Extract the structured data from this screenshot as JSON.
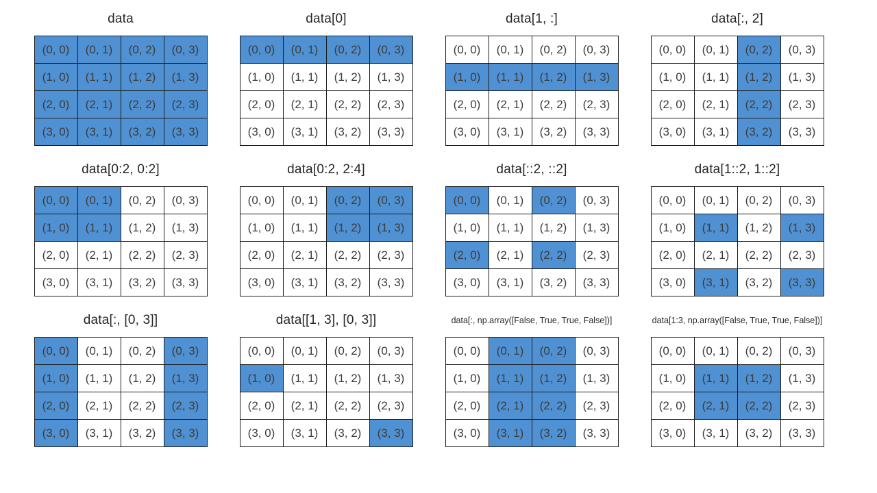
{
  "diagram": {
    "description": "NumPy 2D array indexing illustration: 12 panels showing which cells of a 4x4 array are selected by each indexing expression",
    "colors": {
      "highlight": "#4f91d2",
      "border": "#1c1c1c",
      "cell_text": "#3c3c3c",
      "title_text": "#262626",
      "background": "#ffffff"
    },
    "cells": [
      [
        "(0, 0)",
        "(0, 1)",
        "(0, 2)",
        "(0, 3)"
      ],
      [
        "(1, 0)",
        "(1, 1)",
        "(1, 2)",
        "(1, 3)"
      ],
      [
        "(2, 0)",
        "(2, 1)",
        "(2, 2)",
        "(2, 3)"
      ],
      [
        "(3, 0)",
        "(3, 1)",
        "(3, 2)",
        "(3, 3)"
      ]
    ],
    "panels": [
      {
        "title": "data",
        "title_size": "normal",
        "mask": [
          "1111",
          "1111",
          "1111",
          "1111"
        ]
      },
      {
        "title": "data[0]",
        "title_size": "normal",
        "mask": [
          "1111",
          "0000",
          "0000",
          "0000"
        ]
      },
      {
        "title": "data[1, :]",
        "title_size": "normal",
        "mask": [
          "0000",
          "1111",
          "0000",
          "0000"
        ]
      },
      {
        "title": "data[:, 2]",
        "title_size": "normal",
        "mask": [
          "0010",
          "0010",
          "0010",
          "0010"
        ]
      },
      {
        "title": "data[0:2, 0:2]",
        "title_size": "normal",
        "mask": [
          "1100",
          "1100",
          "0000",
          "0000"
        ]
      },
      {
        "title": "data[0:2, 2:4]",
        "title_size": "normal",
        "mask": [
          "0011",
          "0011",
          "0000",
          "0000"
        ]
      },
      {
        "title": "data[::2, ::2]",
        "title_size": "normal",
        "mask": [
          "1010",
          "0000",
          "1010",
          "0000"
        ]
      },
      {
        "title": "data[1::2, 1::2]",
        "title_size": "normal",
        "mask": [
          "0000",
          "0101",
          "0000",
          "0101"
        ]
      },
      {
        "title": "data[:, [0, 3]]",
        "title_size": "normal",
        "mask": [
          "1001",
          "1001",
          "1001",
          "1001"
        ]
      },
      {
        "title": "data[[1, 3], [0, 3]]",
        "title_size": "normal",
        "mask": [
          "0000",
          "1000",
          "0000",
          "0001"
        ]
      },
      {
        "title": "data[:, np.array([False, True, True, False])]",
        "title_size": "small",
        "mask": [
          "0110",
          "0110",
          "0110",
          "0110"
        ]
      },
      {
        "title": "data[1:3, np.array([False, True, True, False])]",
        "title_size": "small",
        "mask": [
          "0000",
          "0110",
          "0110",
          "0000"
        ]
      }
    ]
  }
}
